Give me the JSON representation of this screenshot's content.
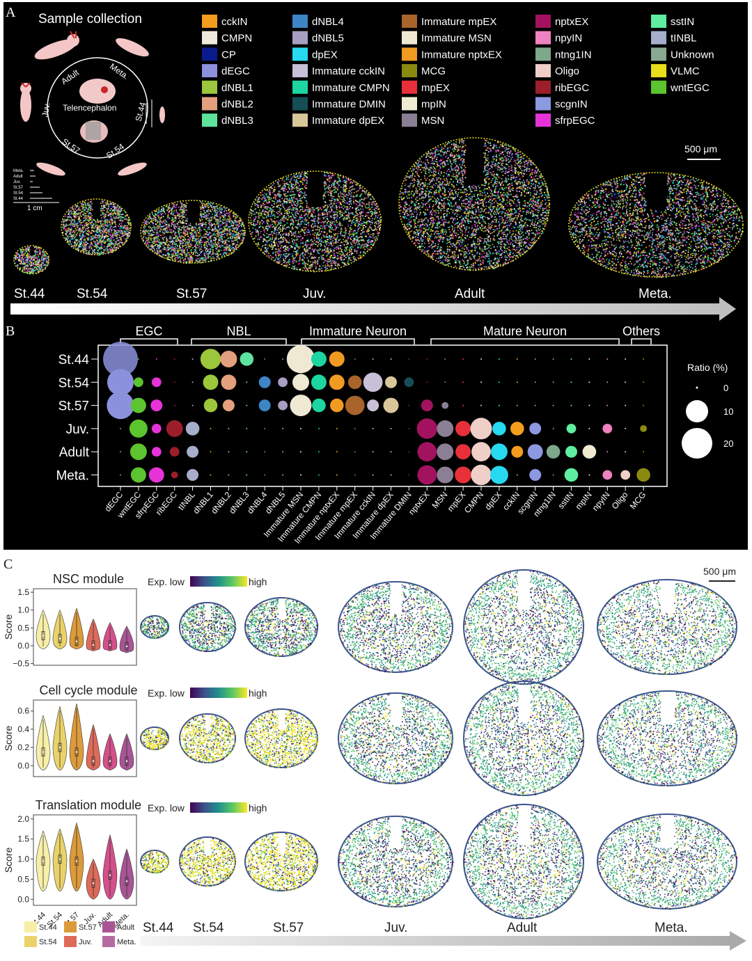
{
  "panelA": {
    "letter": "A",
    "sample_collection_title": "Sample collection",
    "circle_labels": {
      "adult": "Adult",
      "meta": "Meta.",
      "juv": "Juv.",
      "st44": "St.44",
      "st57": "St.57",
      "st54": "St.54",
      "center": "Telencephalon"
    },
    "size_legend": {
      "labels": [
        "Meta.",
        "Adult",
        "Juv.",
        "St.57",
        "St.54",
        "St.44"
      ],
      "scale": "1 cm"
    },
    "legend": [
      {
        "label": "cckIN",
        "color": "#f39c1e"
      },
      {
        "label": "CMPN",
        "color": "#efeadb"
      },
      {
        "label": "CP",
        "color": "#0a1a8c"
      },
      {
        "label": "dEGC",
        "color": "#8b91dc"
      },
      {
        "label": "dNBL1",
        "color": "#9cc63b"
      },
      {
        "label": "dNBL2",
        "color": "#e4a07e"
      },
      {
        "label": "dNBL3",
        "color": "#5de39e"
      },
      {
        "label": "dNBL4",
        "color": "#3d85c6"
      },
      {
        "label": "dNBL5",
        "color": "#a79ec2"
      },
      {
        "label": "dpEX",
        "color": "#27d9f0"
      },
      {
        "label": "Immature cckIN",
        "color": "#c8bfd8"
      },
      {
        "label": "Immature CMPN",
        "color": "#1cd5a0"
      },
      {
        "label": "Immature DMIN",
        "color": "#164e56"
      },
      {
        "label": "Immature dpEX",
        "color": "#d9c79a"
      },
      {
        "label": "Immature mpEX",
        "color": "#a8642a"
      },
      {
        "label": "Immature MSN",
        "color": "#efe9d4"
      },
      {
        "label": "Immature nptxEX",
        "color": "#f09a22"
      },
      {
        "label": "MCG",
        "color": "#8a8a10"
      },
      {
        "label": "mpEX",
        "color": "#e8303a"
      },
      {
        "label": "mpIN",
        "color": "#efead0"
      },
      {
        "label": "MSN",
        "color": "#8a7f94"
      },
      {
        "label": "nptxEX",
        "color": "#a3125e"
      },
      {
        "label": "npyIN",
        "color": "#ef82c0"
      },
      {
        "label": "ntng1IN",
        "color": "#7ea88a"
      },
      {
        "label": "Oligo",
        "color": "#efcfc8"
      },
      {
        "label": "ribEGC",
        "color": "#9c1e2a"
      },
      {
        "label": "scgnIN",
        "color": "#8c98e0"
      },
      {
        "label": "sfrpEGC",
        "color": "#e633d8"
      },
      {
        "label": "sstIN",
        "color": "#5feea0"
      },
      {
        "label": "tINBL",
        "color": "#a7aecb"
      },
      {
        "label": "Unknown",
        "color": "#88a892"
      },
      {
        "label": "VLMC",
        "color": "#e7df1a"
      },
      {
        "label": "wntEGC",
        "color": "#5cc42e"
      }
    ],
    "scale_bar": "500 μm",
    "stages": [
      "St.44",
      "St.54",
      "St.57",
      "Juv.",
      "Adult",
      "Meta."
    ]
  },
  "panelB": {
    "letter": "B",
    "group_labels": [
      "EGC",
      "NBL",
      "Immature Neuron",
      "Mature Neuron",
      "Others"
    ],
    "rows": [
      "St.44",
      "St.54",
      "St.57",
      "Juv.",
      "Adult",
      "Meta."
    ],
    "size_legend_title": "Ratio (%)",
    "size_legend_values": [
      "0",
      "10",
      "20"
    ]
  },
  "chart_data": [
    {
      "type": "scatter",
      "title": "",
      "columns": [
        "dEGC",
        "wntEGC",
        "sfrpEGC",
        "ribEGC",
        "tINBL",
        "dNBL1",
        "dNBL2",
        "dNBL3",
        "dNBL4",
        "dNBL5",
        "Immature MSN",
        "Immature CMPN",
        "Immature nptxEX",
        "Immature mpEX",
        "Immature cckIN",
        "Immature dpEX",
        "Immature DMIN",
        "nptxEX",
        "MSN",
        "mpEX",
        "CMPN",
        "dpEX",
        "cckIN",
        "scgnIN",
        "ntng1IN",
        "sstIN",
        "mpIN",
        "npyIN",
        "Oligo",
        "MCG"
      ],
      "column_colors": [
        "#8b91dc",
        "#5cc42e",
        "#e633d8",
        "#9c1e2a",
        "#a7aecb",
        "#9cc63b",
        "#e4a07e",
        "#5de39e",
        "#3d85c6",
        "#a79ec2",
        "#efe9d4",
        "#1cd5a0",
        "#f09a22",
        "#a8642a",
        "#c8bfd8",
        "#d9c79a",
        "#164e56",
        "#a3125e",
        "#8a7f94",
        "#e8303a",
        "#efcfc8",
        "#27d9f0",
        "#f39c1e",
        "#8c98e0",
        "#7ea88a",
        "#5feea0",
        "#efead0",
        "#ef82c0",
        "#efcfc8",
        "#8a8a10"
      ],
      "rows": [
        "St.44",
        "St.54",
        "St.57",
        "Juv.",
        "Adult",
        "Meta."
      ],
      "size_unit": "Ratio (%)",
      "values": [
        [
          26,
          0,
          0,
          0,
          0,
          9,
          6,
          4,
          0,
          0,
          17,
          5,
          5,
          0,
          0,
          0,
          0,
          0,
          0,
          0,
          0,
          0,
          0,
          0,
          0,
          0,
          0,
          0,
          0,
          0
        ],
        [
          15,
          2,
          2,
          0,
          0,
          5,
          5,
          0,
          3,
          2,
          6,
          5,
          5,
          4,
          8,
          3,
          2,
          0,
          0,
          0,
          0,
          0,
          0,
          0,
          0,
          0,
          0,
          0,
          0,
          0
        ],
        [
          16,
          5,
          3,
          0,
          0,
          4,
          3,
          0,
          3,
          2,
          10,
          4,
          4,
          8,
          3,
          5,
          0,
          3,
          1,
          0,
          0,
          0,
          0,
          0,
          0,
          0,
          0,
          0,
          0,
          0
        ],
        [
          0,
          7,
          2,
          6,
          4,
          0,
          0,
          0,
          0,
          0,
          0,
          0,
          0,
          0,
          0,
          0,
          0,
          9,
          6,
          5,
          10,
          4,
          4,
          3,
          0,
          2,
          0,
          2,
          0,
          1
        ],
        [
          0,
          6,
          2,
          2,
          3,
          0,
          0,
          0,
          0,
          0,
          0,
          0,
          0,
          0,
          0,
          0,
          0,
          8,
          6,
          5,
          8,
          6,
          3,
          5,
          4,
          3,
          4,
          0,
          0,
          0
        ],
        [
          0,
          5,
          5,
          1,
          3,
          0,
          0,
          0,
          0,
          0,
          0,
          0,
          0,
          0,
          0,
          0,
          0,
          8,
          6,
          6,
          9,
          7,
          0,
          3,
          0,
          4,
          0,
          2,
          2,
          4
        ]
      ]
    },
    {
      "type": "violin",
      "title": "NSC module",
      "ylabel": "Score",
      "categories": [
        "St.44",
        "St.54",
        "St.57",
        "Juv.",
        "Adult",
        "Meta."
      ],
      "median": [
        0.28,
        0.2,
        0.12,
        0.02,
        0.02,
        -0.02
      ],
      "min": [
        -0.1,
        -0.1,
        -0.1,
        -0.15,
        -0.15,
        -0.2
      ],
      "max": [
        1.0,
        1.0,
        1.05,
        0.75,
        0.65,
        0.55
      ],
      "yticks": [
        "1.5",
        "1.0",
        "0.5",
        "0.0",
        "−0.5"
      ],
      "ylim": [
        -0.55,
        1.6
      ]
    },
    {
      "type": "violin",
      "title": "Cell cycle module",
      "ylabel": "Score",
      "categories": [
        "St.44",
        "St.54",
        "St.57",
        "Juv.",
        "Adult",
        "Meta."
      ],
      "median": [
        0.15,
        0.2,
        0.15,
        0.05,
        0.05,
        0.05
      ],
      "min": [
        -0.05,
        -0.05,
        -0.05,
        -0.05,
        -0.05,
        -0.05
      ],
      "max": [
        0.55,
        0.65,
        0.68,
        0.45,
        0.35,
        0.35
      ],
      "yticks": [
        "0.6",
        "0.4",
        "0.2",
        "0.0"
      ],
      "ylim": [
        -0.12,
        0.72
      ]
    },
    {
      "type": "violin",
      "title": "Translation module",
      "ylabel": "Score",
      "categories": [
        "St.44",
        "St.54",
        "St.57",
        "Juv.",
        "Adult",
        "Meta."
      ],
      "median": [
        0.95,
        1.0,
        0.95,
        0.4,
        0.6,
        0.45
      ],
      "min": [
        0.2,
        0.2,
        0.2,
        0.0,
        0.0,
        0.0
      ],
      "max": [
        1.7,
        1.75,
        1.9,
        1.0,
        1.6,
        1.25
      ],
      "yticks": [
        "2.0",
        "1.5",
        "1.0",
        "0.5",
        "0.0"
      ],
      "ylim": [
        -0.15,
        2.1
      ]
    }
  ],
  "panelC": {
    "letter": "C",
    "exp_low": "Exp. low",
    "exp_high": "high",
    "scale_bar": "500 μm",
    "violin_colors": [
      "#f7efa8",
      "#ead26a",
      "#dd9a3a",
      "#de6a5a",
      "#d5508a",
      "#a95595"
    ],
    "stage_legend": [
      {
        "label": "St.44",
        "color": "#f7efa8"
      },
      {
        "label": "St.54",
        "color": "#ead26a"
      },
      {
        "label": "St.57",
        "color": "#dd9a3a"
      },
      {
        "label": "Juv.",
        "color": "#de6a5a"
      },
      {
        "label": "Adult",
        "color": "#a95595"
      },
      {
        "label": "Meta.",
        "color": "#b56aa2"
      }
    ],
    "stages": [
      "St.44",
      "St.54",
      "St.57",
      "Juv.",
      "Adult",
      "Meta."
    ]
  }
}
